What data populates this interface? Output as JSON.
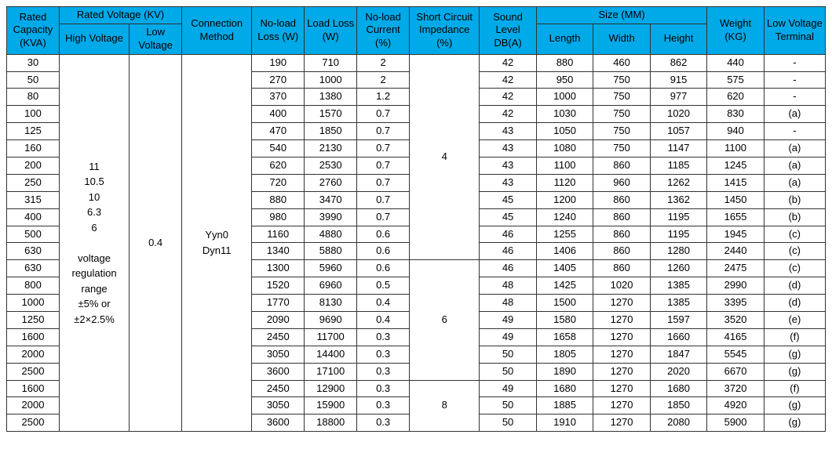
{
  "table": {
    "header": {
      "rated_capacity": "Rated Capacity (KVA)",
      "rated_voltage_group": "Rated Voltage (KV)",
      "high_voltage": "High Voltage",
      "low_voltage": "Low Voltage",
      "connection_method": "Connection Method",
      "no_load_loss": "No-load Loss (W)",
      "load_loss": "Load Loss (W)",
      "no_load_current": "No-load Current (%)",
      "short_circuit_impedance": "Short Circuit Impedance (%)",
      "sound_level": "Sound Level DB(A)",
      "size_group": "Size (MM)",
      "length": "Length",
      "width": "Width",
      "height": "Height",
      "weight": "Weight (KG)",
      "low_voltage_terminal": "Low Voltage Terminal"
    },
    "styling": {
      "header_bg": "#00a9e8",
      "header_text_color": "#000000",
      "cell_bg": "#ffffff",
      "cell_text_color": "#000000",
      "border_color": "#333333",
      "font_family": "Arial, sans-serif",
      "header_fontsize": 13,
      "cell_fontsize": 13
    },
    "merged": {
      "high_voltage": "11\n10.5\n10\n6.3\n6\n\nvoltage\nregulation\nrange\n±5% or\n±2×2.5%",
      "low_voltage": "0.4",
      "connection_method": "Yyn0\nDyn11",
      "sci_group1": "4",
      "sci_group2": "6",
      "sci_group3": "8"
    },
    "rows": [
      {
        "cap": "30",
        "nll": "190",
        "ll": "710",
        "nlc": "2",
        "sound": "42",
        "len": "880",
        "wid": "460",
        "hgt": "862",
        "wgt": "440",
        "lvt": "-"
      },
      {
        "cap": "50",
        "nll": "270",
        "ll": "1000",
        "nlc": "2",
        "sound": "42",
        "len": "950",
        "wid": "750",
        "hgt": "915",
        "wgt": "575",
        "lvt": "-"
      },
      {
        "cap": "80",
        "nll": "370",
        "ll": "1380",
        "nlc": "1.2",
        "sound": "42",
        "len": "1000",
        "wid": "750",
        "hgt": "977",
        "wgt": "620",
        "lvt": "-"
      },
      {
        "cap": "100",
        "nll": "400",
        "ll": "1570",
        "nlc": "0.7",
        "sound": "42",
        "len": "1030",
        "wid": "750",
        "hgt": "1020",
        "wgt": "830",
        "lvt": "(a)"
      },
      {
        "cap": "125",
        "nll": "470",
        "ll": "1850",
        "nlc": "0.7",
        "sound": "43",
        "len": "1050",
        "wid": "750",
        "hgt": "1057",
        "wgt": "940",
        "lvt": "-"
      },
      {
        "cap": "160",
        "nll": "540",
        "ll": "2130",
        "nlc": "0.7",
        "sound": "43",
        "len": "1080",
        "wid": "750",
        "hgt": "1147",
        "wgt": "1100",
        "lvt": "(a)"
      },
      {
        "cap": "200",
        "nll": "620",
        "ll": "2530",
        "nlc": "0.7",
        "sound": "43",
        "len": "1100",
        "wid": "860",
        "hgt": "1185",
        "wgt": "1245",
        "lvt": "(a)"
      },
      {
        "cap": "250",
        "nll": "720",
        "ll": "2760",
        "nlc": "0.7",
        "sound": "43",
        "len": "1120",
        "wid": "960",
        "hgt": "1262",
        "wgt": "1415",
        "lvt": "(a)"
      },
      {
        "cap": "315",
        "nll": "880",
        "ll": "3470",
        "nlc": "0.7",
        "sound": "45",
        "len": "1200",
        "wid": "860",
        "hgt": "1362",
        "wgt": "1450",
        "lvt": "(b)"
      },
      {
        "cap": "400",
        "nll": "980",
        "ll": "3990",
        "nlc": "0.7",
        "sound": "45",
        "len": "1240",
        "wid": "860",
        "hgt": "1195",
        "wgt": "1655",
        "lvt": "(b)"
      },
      {
        "cap": "500",
        "nll": "1160",
        "ll": "4880",
        "nlc": "0.6",
        "sound": "46",
        "len": "1255",
        "wid": "860",
        "hgt": "1195",
        "wgt": "1945",
        "lvt": "(c)"
      },
      {
        "cap": "630",
        "nll": "1340",
        "ll": "5880",
        "nlc": "0.6",
        "sound": "46",
        "len": "1406",
        "wid": "860",
        "hgt": "1280",
        "wgt": "2440",
        "lvt": "(c)"
      },
      {
        "cap": "630",
        "nll": "1300",
        "ll": "5960",
        "nlc": "0.6",
        "sound": "46",
        "len": "1405",
        "wid": "860",
        "hgt": "1260",
        "wgt": "2475",
        "lvt": "(c)"
      },
      {
        "cap": "800",
        "nll": "1520",
        "ll": "6960",
        "nlc": "0.5",
        "sound": "48",
        "len": "1425",
        "wid": "1020",
        "hgt": "1385",
        "wgt": "2990",
        "lvt": "(d)"
      },
      {
        "cap": "1000",
        "nll": "1770",
        "ll": "8130",
        "nlc": "0.4",
        "sound": "48",
        "len": "1500",
        "wid": "1270",
        "hgt": "1385",
        "wgt": "3395",
        "lvt": "(d)"
      },
      {
        "cap": "1250",
        "nll": "2090",
        "ll": "9690",
        "nlc": "0.4",
        "sound": "49",
        "len": "1580",
        "wid": "1270",
        "hgt": "1597",
        "wgt": "3520",
        "lvt": "(e)"
      },
      {
        "cap": "1600",
        "nll": "2450",
        "ll": "11700",
        "nlc": "0.3",
        "sound": "49",
        "len": "1658",
        "wid": "1270",
        "hgt": "1660",
        "wgt": "4165",
        "lvt": "(f)"
      },
      {
        "cap": "2000",
        "nll": "3050",
        "ll": "14400",
        "nlc": "0.3",
        "sound": "50",
        "len": "1805",
        "wid": "1270",
        "hgt": "1847",
        "wgt": "5545",
        "lvt": "(g)"
      },
      {
        "cap": "2500",
        "nll": "3600",
        "ll": "17100",
        "nlc": "0.3",
        "sound": "50",
        "len": "1890",
        "wid": "1270",
        "hgt": "2020",
        "wgt": "6670",
        "lvt": "(g)"
      },
      {
        "cap": "1600",
        "nll": "2450",
        "ll": "12900",
        "nlc": "0.3",
        "sound": "49",
        "len": "1680",
        "wid": "1270",
        "hgt": "1680",
        "wgt": "3720",
        "lvt": "(f)"
      },
      {
        "cap": "2000",
        "nll": "3050",
        "ll": "15900",
        "nlc": "0.3",
        "sound": "50",
        "len": "1885",
        "wid": "1270",
        "hgt": "1850",
        "wgt": "4920",
        "lvt": "(g)"
      },
      {
        "cap": "2500",
        "nll": "3600",
        "ll": "18800",
        "nlc": "0.3",
        "sound": "50",
        "len": "1910",
        "wid": "1270",
        "hgt": "2080",
        "wgt": "5900",
        "lvt": "(g)"
      }
    ],
    "sci_spans": [
      {
        "start": 0,
        "span": 12,
        "key": "sci_group1"
      },
      {
        "start": 12,
        "span": 7,
        "key": "sci_group2"
      },
      {
        "start": 19,
        "span": 3,
        "key": "sci_group3"
      }
    ]
  }
}
